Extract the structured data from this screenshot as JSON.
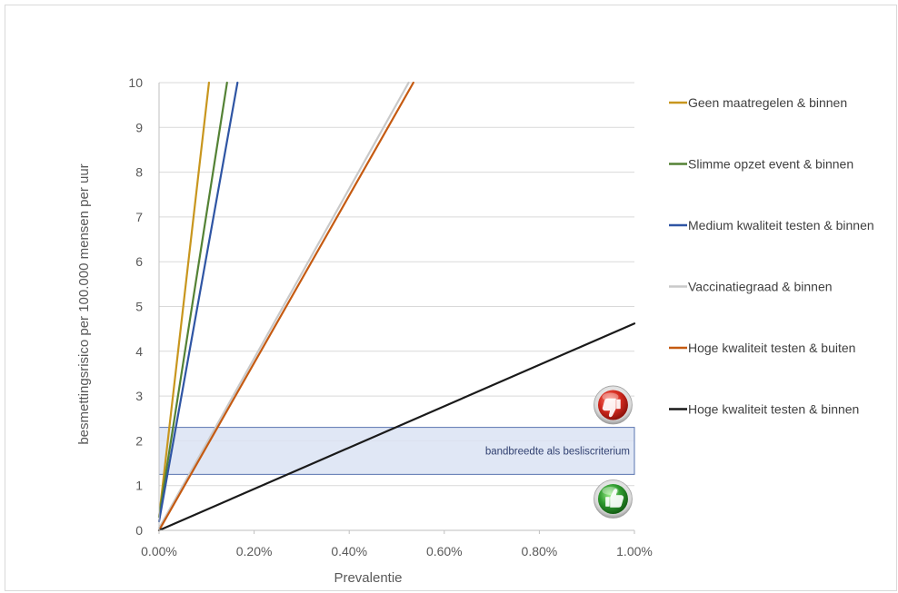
{
  "chart_data": {
    "type": "line",
    "title": "",
    "xlabel": "Prevalentie",
    "ylabel": "besmettingsrisico per 100.000 mensen per uur",
    "xlim": [
      0,
      1.0
    ],
    "ylim": [
      0,
      10
    ],
    "x_ticks": [
      "0.00%",
      "0.20%",
      "0.40%",
      "0.60%",
      "0.80%",
      "1.00%"
    ],
    "y_ticks": [
      "0",
      "1",
      "2",
      "3",
      "4",
      "5",
      "6",
      "7",
      "8",
      "9",
      "10"
    ],
    "grid": "horizontal",
    "legend_position": "right",
    "series": [
      {
        "name": "Geen maatregelen & binnen",
        "color": "#c8961e",
        "x": [
          0.0,
          0.105
        ],
        "y": [
          0.3,
          10
        ]
      },
      {
        "name": "Slimme opzet event & binnen",
        "color": "#548235",
        "x": [
          0.0,
          0.143
        ],
        "y": [
          0.3,
          10
        ]
      },
      {
        "name": "Medium kwaliteit testen & binnen",
        "color": "#2f55a4",
        "x": [
          0.0,
          0.165
        ],
        "y": [
          0.2,
          10
        ]
      },
      {
        "name": "Vaccinatiegraad & binnen",
        "color": "#c9c9c9",
        "x": [
          0.0,
          0.525
        ],
        "y": [
          0.05,
          10
        ]
      },
      {
        "name": "Hoge kwaliteit testen & buiten",
        "color": "#c55a11",
        "x": [
          0.0,
          0.535
        ],
        "y": [
          0.0,
          10
        ]
      },
      {
        "name": "Hoge kwaliteit testen & binnen",
        "color": "#1a1a1a",
        "x": [
          0.0,
          1.0
        ],
        "y": [
          0.0,
          4.62
        ]
      }
    ],
    "band": {
      "label": "bandbreedte  als besliscriterium",
      "y_from": 1.25,
      "y_to": 2.3,
      "fill": "#dbe3f3",
      "stroke": "#5a74b0"
    },
    "icons": [
      {
        "name": "thumbs-down-icon",
        "color": "#d42a1f",
        "x": 0.955,
        "y": 2.8
      },
      {
        "name": "thumbs-up-icon",
        "color": "#2f9a2f",
        "x": 0.955,
        "y": 0.7
      }
    ]
  }
}
